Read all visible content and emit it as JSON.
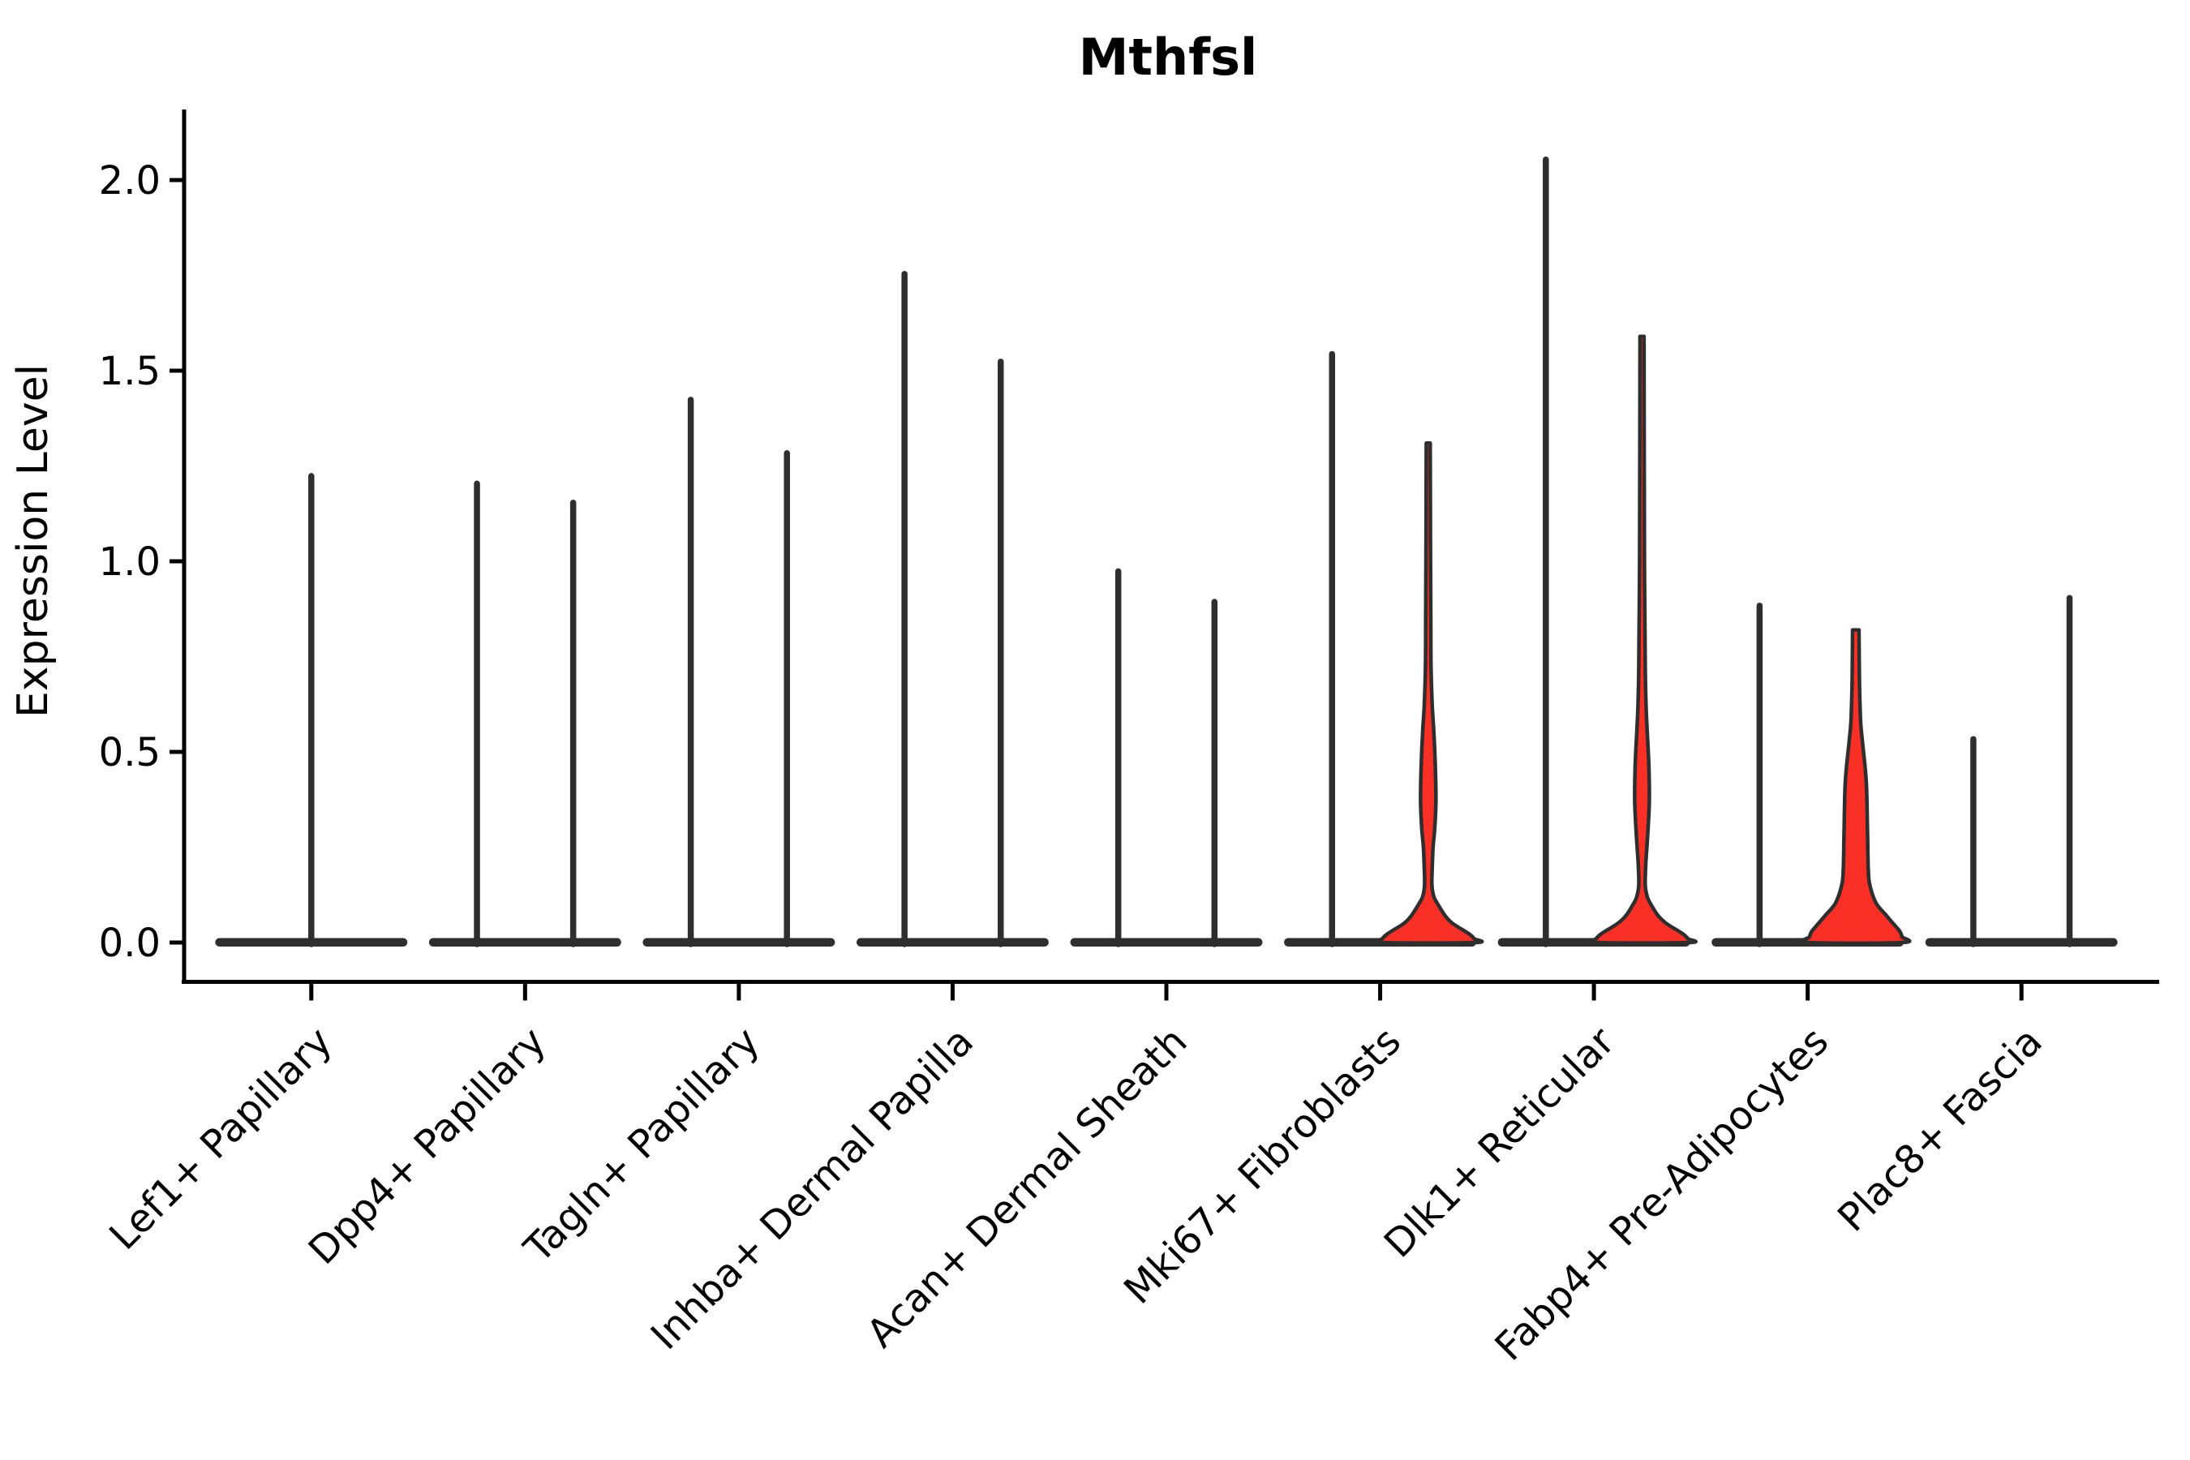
{
  "title": "Mthfsl",
  "y_axis": {
    "label": "Expression Level",
    "tick_labels": [
      "0.0",
      "0.5",
      "1.0",
      "1.5",
      "2.0"
    ]
  },
  "chart_data": {
    "type": "violin",
    "title": "Mthfsl",
    "ylabel": "Expression Level",
    "ylim": [
      -0.1,
      2.19
    ],
    "yticks": [
      0.0,
      0.5,
      1.0,
      1.5,
      2.0
    ],
    "grid": false,
    "legend": "none",
    "categories": [
      "Lef1+ Papillary",
      "Dpp4+ Papillary",
      "Tagln+ Papillary",
      "Inhba+ Dermal Papilla",
      "Acan+ Dermal Sheath",
      "Mki67+ Fibroblasts",
      "Dlk1+ Reticular",
      "Fabp4+ Pre-Adipocytes",
      "Plac8+ Fascia"
    ],
    "colors": {
      "spike_stroke": "#2e2e2e",
      "highlight_fill": "#fa2f25",
      "axis": "#000000",
      "background": "#ffffff"
    },
    "violins": [
      {
        "category_index": 0,
        "position": "center",
        "max_value": 1.23,
        "style": "line"
      },
      {
        "category_index": 1,
        "position": "left",
        "max_value": 1.21,
        "style": "line"
      },
      {
        "category_index": 1,
        "position": "right",
        "max_value": 1.16,
        "style": "line"
      },
      {
        "category_index": 2,
        "position": "left",
        "max_value": 1.43,
        "style": "line"
      },
      {
        "category_index": 2,
        "position": "right",
        "max_value": 1.29,
        "style": "line"
      },
      {
        "category_index": 3,
        "position": "left",
        "max_value": 1.76,
        "style": "line"
      },
      {
        "category_index": 3,
        "position": "right",
        "max_value": 1.53,
        "style": "line"
      },
      {
        "category_index": 4,
        "position": "left",
        "max_value": 0.98,
        "style": "line"
      },
      {
        "category_index": 4,
        "position": "right",
        "max_value": 0.9,
        "style": "line"
      },
      {
        "category_index": 5,
        "position": "left",
        "max_value": 1.55,
        "style": "line"
      },
      {
        "category_index": 5,
        "position": "right",
        "max_value": 1.31,
        "style": "filled",
        "profile": [
          [
            1.31,
            0.042
          ],
          [
            1.05,
            0.047
          ],
          [
            0.85,
            0.053
          ],
          [
            0.72,
            0.059
          ],
          [
            0.62,
            0.084
          ],
          [
            0.55,
            0.118
          ],
          [
            0.46,
            0.148
          ],
          [
            0.37,
            0.16
          ],
          [
            0.3,
            0.135
          ],
          [
            0.25,
            0.101
          ],
          [
            0.2,
            0.084
          ],
          [
            0.15,
            0.076
          ],
          [
            0.12,
            0.118
          ],
          [
            0.1,
            0.202
          ],
          [
            0.07,
            0.354
          ],
          [
            0.05,
            0.506
          ],
          [
            0.03,
            0.759
          ],
          [
            0.02,
            0.877
          ],
          [
            0.01,
            0.953
          ],
          [
            0.0,
            0.978
          ]
        ]
      },
      {
        "category_index": 6,
        "position": "left",
        "max_value": 2.06,
        "style": "line"
      },
      {
        "category_index": 6,
        "position": "right",
        "max_value": 1.59,
        "style": "filled",
        "profile": [
          [
            1.59,
            0.042
          ],
          [
            1.3,
            0.046
          ],
          [
            1.0,
            0.051
          ],
          [
            0.85,
            0.059
          ],
          [
            0.72,
            0.067
          ],
          [
            0.62,
            0.084
          ],
          [
            0.55,
            0.11
          ],
          [
            0.46,
            0.143
          ],
          [
            0.37,
            0.152
          ],
          [
            0.3,
            0.126
          ],
          [
            0.25,
            0.101
          ],
          [
            0.2,
            0.076
          ],
          [
            0.15,
            0.067
          ],
          [
            0.12,
            0.11
          ],
          [
            0.1,
            0.185
          ],
          [
            0.07,
            0.337
          ],
          [
            0.05,
            0.506
          ],
          [
            0.03,
            0.759
          ],
          [
            0.02,
            0.877
          ],
          [
            0.01,
            0.953
          ],
          [
            0.0,
            0.978
          ]
        ]
      },
      {
        "category_index": 7,
        "position": "left",
        "max_value": 0.89,
        "style": "line"
      },
      {
        "category_index": 7,
        "position": "right",
        "max_value": 0.82,
        "style": "filled",
        "profile": [
          [
            0.82,
            0.067
          ],
          [
            0.74,
            0.072
          ],
          [
            0.66,
            0.08
          ],
          [
            0.58,
            0.101
          ],
          [
            0.53,
            0.135
          ],
          [
            0.47,
            0.186
          ],
          [
            0.42,
            0.219
          ],
          [
            0.37,
            0.232
          ],
          [
            0.31,
            0.241
          ],
          [
            0.26,
            0.248
          ],
          [
            0.22,
            0.253
          ],
          [
            0.19,
            0.26
          ],
          [
            0.16,
            0.278
          ],
          [
            0.13,
            0.337
          ],
          [
            0.1,
            0.438
          ],
          [
            0.07,
            0.641
          ],
          [
            0.05,
            0.776
          ],
          [
            0.03,
            0.911
          ],
          [
            0.015,
            0.962
          ],
          [
            0.0,
            0.978
          ]
        ]
      },
      {
        "category_index": 8,
        "position": "left",
        "max_value": 0.54,
        "style": "line"
      },
      {
        "category_index": 8,
        "position": "right",
        "max_value": 0.91,
        "style": "line"
      }
    ]
  }
}
